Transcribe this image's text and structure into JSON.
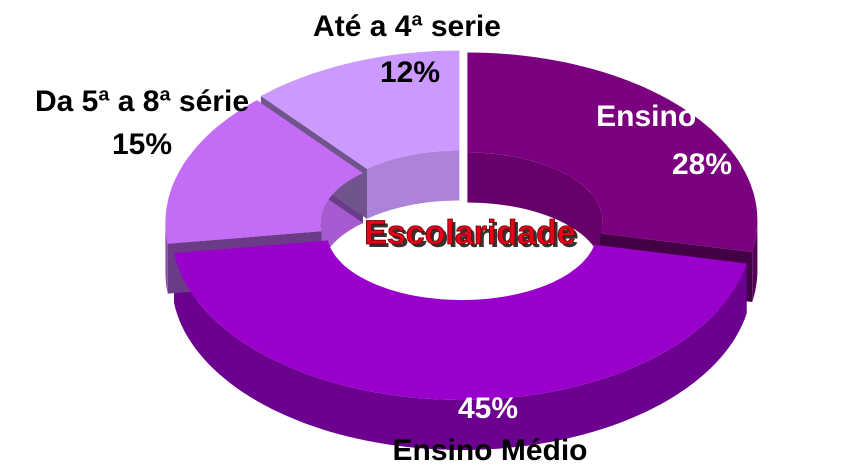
{
  "chart_data": {
    "type": "donut3d",
    "title": "Escolaridade",
    "categories": [
      "Ensino Superior",
      "Ensino Médio",
      "Da 5ª a 8ª série",
      "Até a 4ª serie"
    ],
    "values": [
      28,
      45,
      15,
      12
    ],
    "value_labels": [
      "28%",
      "45%",
      "15%",
      "12%"
    ],
    "colors": [
      "#7a007f",
      "#9a00cc",
      "#c36cf5",
      "#cc99ff"
    ]
  }
}
